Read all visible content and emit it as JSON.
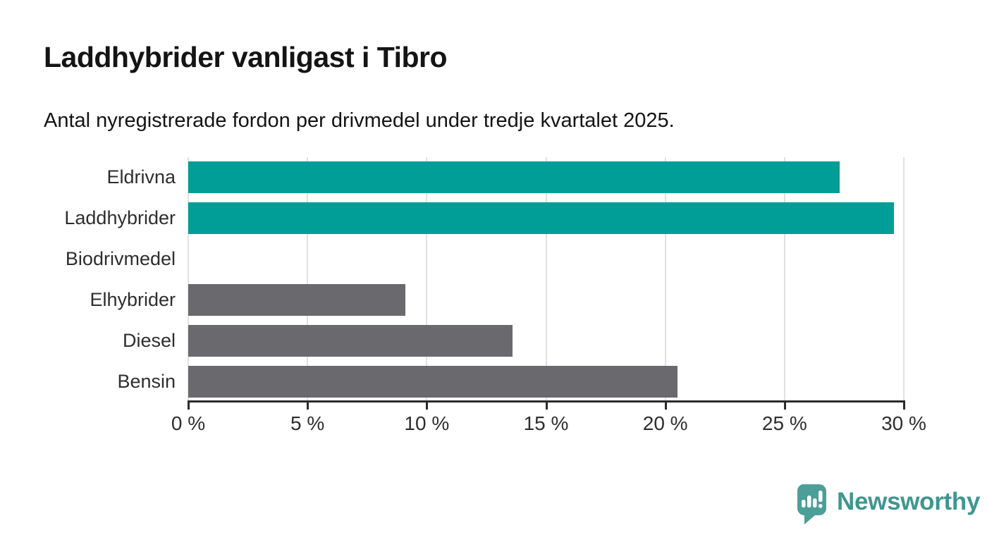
{
  "header": {
    "title": "Laddhybrider vanligast i Tibro",
    "subtitle": "Antal nyregistrerade fordon per drivmedel under tredje kvartalet 2025."
  },
  "chart_data": {
    "type": "bar",
    "orientation": "horizontal",
    "title": "Laddhybrider vanligast i Tibro",
    "subtitle": "Antal nyregistrerade fordon per drivmedel under tredje kvartalet 2025.",
    "categories": [
      "Eldrivna",
      "Laddhybrider",
      "Biodrivmedel",
      "Elhybrider",
      "Diesel",
      "Bensin"
    ],
    "values": [
      27.3,
      29.6,
      0,
      9.1,
      13.6,
      20.5
    ],
    "unit": "%",
    "xlabel": "",
    "ylabel": "",
    "xlim": [
      0,
      30
    ],
    "xticks": [
      0,
      5,
      10,
      15,
      20,
      25,
      30
    ],
    "xtick_labels": [
      "0 %",
      "5 %",
      "10 %",
      "15 %",
      "20 %",
      "25 %",
      "30 %"
    ],
    "bar_colors": [
      "#009E96",
      "#009E96",
      "#6A6A6E",
      "#6A6A6E",
      "#6A6A6E",
      "#6A6A6E"
    ],
    "highlighted_categories": [
      "Eldrivna",
      "Laddhybrider"
    ],
    "grid": "vertical-on",
    "legend": "none"
  },
  "branding": {
    "logo_text": "Newsworthy",
    "logo_text_color": "#3F968F",
    "logo_icon": "newsworthy-chart-bubble-icon",
    "logo_icon_color": "#4C9E99"
  },
  "palette": {
    "highlight": "#009E96",
    "muted": "#6A6A6E",
    "axis": "#2B2B2B",
    "gridline": "#E1E1E1",
    "text": "#141414"
  }
}
